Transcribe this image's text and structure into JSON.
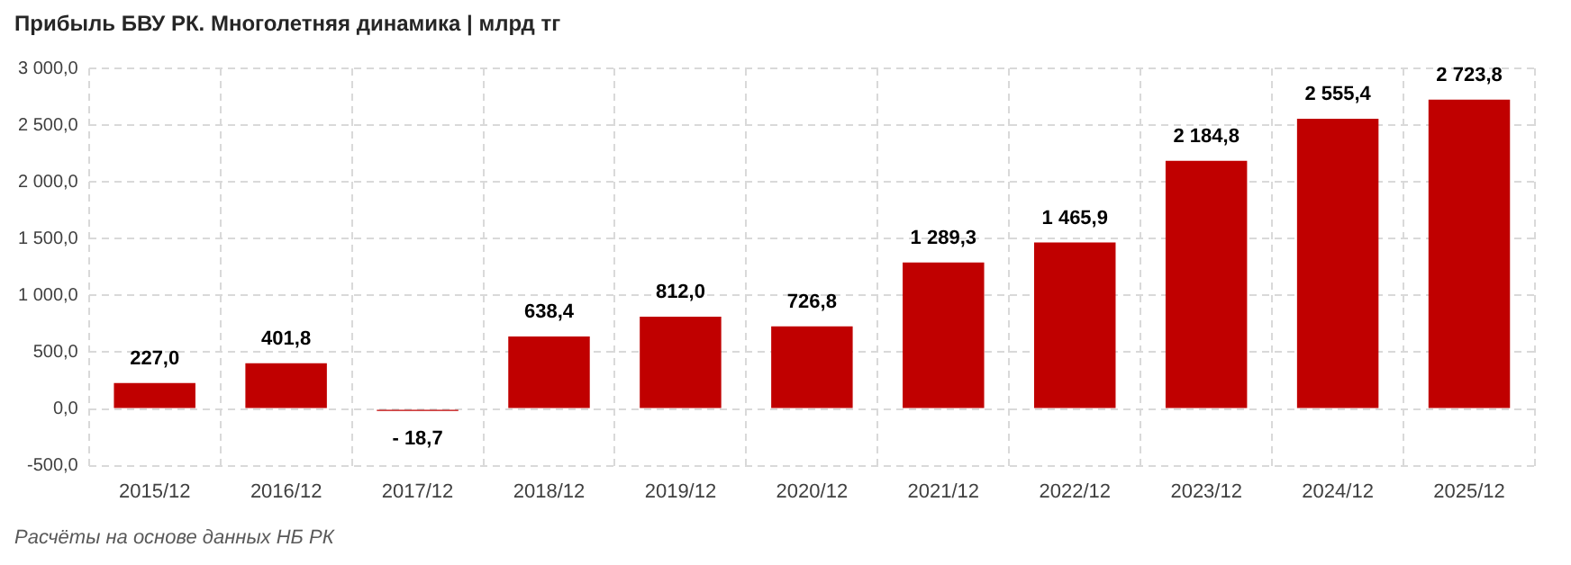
{
  "chart_data": {
    "type": "bar",
    "title": "Прибыль БВУ РК. Многолетняя динамика | млрд тг",
    "categories": [
      "2015/12",
      "2016/12",
      "2017/12",
      "2018/12",
      "2019/12",
      "2020/12",
      "2021/12",
      "2022/12",
      "2023/12",
      "2024/12",
      "2025/12"
    ],
    "values": [
      227.0,
      401.8,
      -18.7,
      638.4,
      812.0,
      726.8,
      1289.3,
      1465.9,
      2184.8,
      2555.4,
      2723.8
    ],
    "value_labels": [
      "227,0",
      "401,8",
      "- 18,7",
      "638,4",
      "812,0",
      "726,8",
      "1 289,3",
      "1 465,9",
      "2 184,8",
      "2 555,4",
      "2 723,8"
    ],
    "color": "#c00000",
    "ylim": [
      -500,
      3000
    ],
    "yticks": [
      {
        "value": -500,
        "label": "-500,0"
      },
      {
        "value": 0,
        "label": "0,0"
      },
      {
        "value": 500,
        "label": "500,0"
      },
      {
        "value": 1000,
        "label": "1 000,0"
      },
      {
        "value": 1500,
        "label": "1 500,0"
      },
      {
        "value": 2000,
        "label": "2 000,0"
      },
      {
        "value": 2500,
        "label": "2 500,0"
      },
      {
        "value": 3000,
        "label": "3 000,0"
      }
    ],
    "grid": true,
    "legend": false,
    "annotations": [
      "Расчёты на основе данных НБ РК"
    ]
  }
}
